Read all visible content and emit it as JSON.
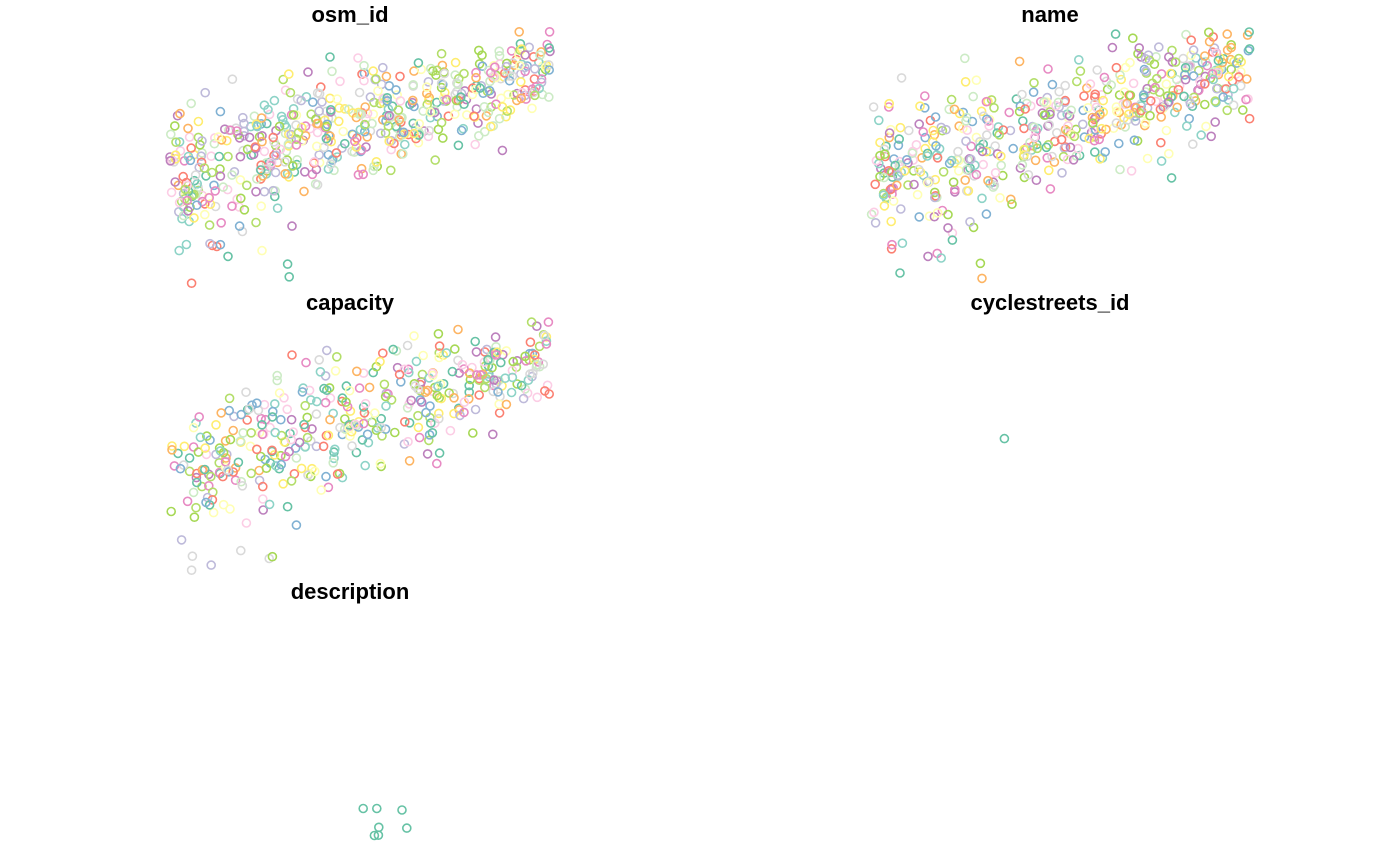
{
  "palette": [
    "#8DD3C7",
    "#FFFFB3",
    "#BEBADA",
    "#FB8072",
    "#80B1D3",
    "#FDB462",
    "#B3DE69",
    "#FCCDE5",
    "#D9D9D9",
    "#BC80BD",
    "#CCEBC5",
    "#FFED6F",
    "#66C2A5",
    "#E78AC3",
    "#A6D854"
  ],
  "single_color": "#66C2A5",
  "chart_data": [
    {
      "type": "scatter",
      "title": "osm_id",
      "x_range": [
        0,
        100
      ],
      "y_range": [
        0,
        100
      ],
      "n_points": 560,
      "seed": 11,
      "layout_hint": "dense-cloud",
      "points": []
    },
    {
      "type": "scatter",
      "title": "name",
      "x_range": [
        0,
        100
      ],
      "y_range": [
        0,
        100
      ],
      "n_points": 520,
      "seed": 23,
      "layout_hint": "dense-cloud",
      "points": []
    },
    {
      "type": "scatter",
      "title": "capacity",
      "x_range": [
        0,
        100
      ],
      "y_range": [
        0,
        100
      ],
      "n_points": 420,
      "seed": 37,
      "layout_hint": "dense-cloud",
      "points": []
    },
    {
      "type": "scatter",
      "title": "cyclestreets_id",
      "x_range": [
        0,
        100
      ],
      "y_range": [
        0,
        100
      ],
      "points": [
        [
          38.6,
          47.3
        ]
      ]
    },
    {
      "type": "scatter",
      "title": "description",
      "x_range": [
        0,
        100
      ],
      "y_range": [
        0,
        100
      ],
      "points": [
        [
          53.3,
          79.0
        ],
        [
          56.7,
          79.0
        ],
        [
          63.0,
          79.6
        ],
        [
          57.2,
          86.4
        ],
        [
          56.1,
          89.6
        ],
        [
          57.1,
          89.5
        ],
        [
          64.2,
          86.7
        ]
      ]
    }
  ]
}
